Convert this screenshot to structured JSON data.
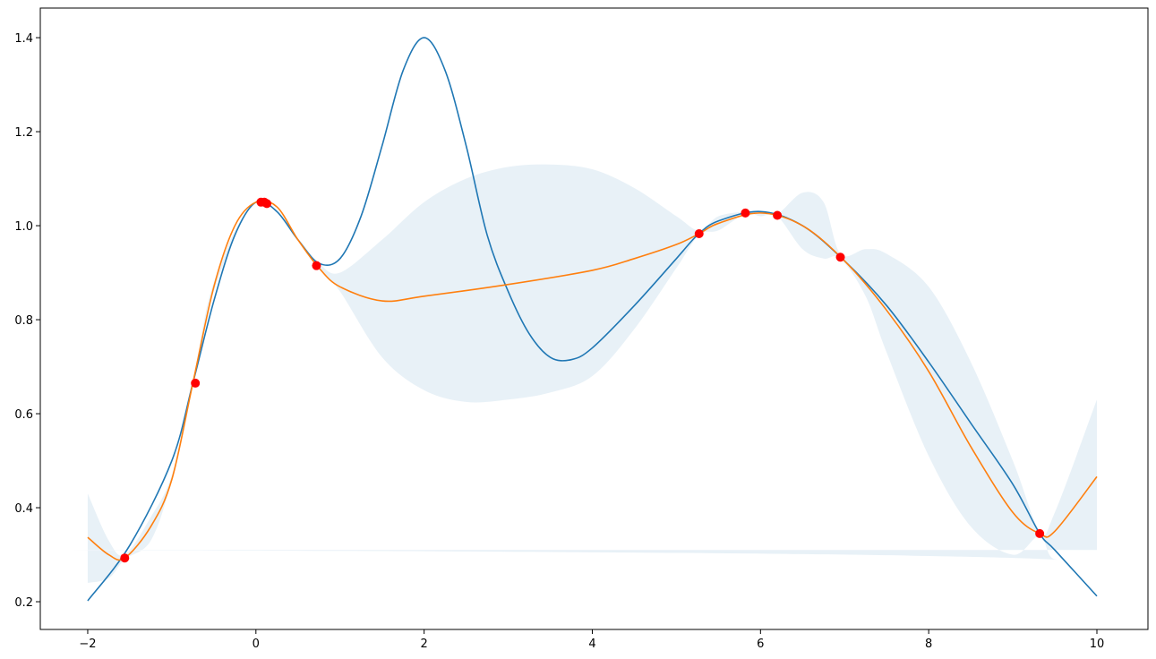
{
  "chart_data": {
    "type": "line",
    "xlim": [
      -2.564,
      10.607
    ],
    "ylim": [
      0.141,
      1.463
    ],
    "xticks": [
      {
        "value": -2,
        "label": "−2"
      },
      0,
      2,
      4,
      6,
      8,
      10
    ],
    "yticks": [
      0.2,
      0.4,
      0.6,
      0.8,
      {
        "value": 1,
        "label": "1.0"
      },
      1.2,
      1.4
    ],
    "band": {
      "color": "#1f77b4",
      "x": [
        -2,
        -1.75,
        -1.56,
        -1.25,
        -1,
        -0.75,
        -0.5,
        0,
        0.5,
        0.75,
        1,
        1.5,
        2,
        2.5,
        3,
        3.5,
        4,
        4.5,
        5,
        5.27,
        5.5,
        5.82,
        6,
        6.2,
        6.5,
        6.75,
        6.95,
        7.25,
        7.5,
        8,
        8.5,
        9,
        9.32,
        9.5,
        10
      ],
      "lower": [
        0.24,
        0.25,
        0.29,
        0.33,
        0.46,
        0.665,
        0.86,
        1.05,
        0.97,
        0.91,
        0.86,
        0.72,
        0.65,
        0.625,
        0.63,
        0.645,
        0.68,
        0.78,
        0.91,
        0.98,
        0.99,
        1.025,
        1.02,
        1.02,
        0.95,
        0.93,
        0.93,
        0.85,
        0.73,
        0.51,
        0.36,
        0.3,
        0.34,
        0.29,
        0.31
      ],
      "upper": [
        0.43,
        0.33,
        0.3,
        0.38,
        0.47,
        0.665,
        0.88,
        1.05,
        0.97,
        0.92,
        0.9,
        0.97,
        1.05,
        1.1,
        1.125,
        1.13,
        1.12,
        1.08,
        1.02,
        0.99,
        1.02,
        1.03,
        1.03,
        1.025,
        1.07,
        1.05,
        0.94,
        0.95,
        0.94,
        0.87,
        0.71,
        0.5,
        0.35,
        0.39,
        0.63
      ]
    },
    "series": [
      {
        "color": "#1f77b4",
        "x": [
          -2,
          -1.5,
          -1,
          -0.75,
          -0.5,
          -0.25,
          0,
          0.25,
          0.5,
          0.75,
          1,
          1.25,
          1.5,
          1.75,
          2,
          2.25,
          2.5,
          2.75,
          3,
          3.25,
          3.5,
          3.75,
          4,
          4.5,
          5,
          5.25,
          5.5,
          6,
          6.5,
          7,
          7.5,
          8,
          8.5,
          9,
          9.32,
          9.5,
          10
        ],
        "values": [
          0.202,
          0.32,
          0.5,
          0.665,
          0.84,
          0.98,
          1.05,
          1.03,
          0.97,
          0.92,
          0.93,
          1.02,
          1.17,
          1.33,
          1.4,
          1.33,
          1.17,
          0.98,
          0.86,
          0.77,
          0.72,
          0.715,
          0.74,
          0.83,
          0.93,
          0.98,
          1.01,
          1.03,
          1.0,
          0.925,
          0.83,
          0.71,
          0.58,
          0.45,
          0.345,
          0.31,
          0.212
        ]
      },
      {
        "color": "#ff7f0e",
        "x": [
          -2,
          -1.75,
          -1.56,
          -1.25,
          -1,
          -0.75,
          -0.5,
          -0.25,
          0,
          0.25,
          0.5,
          0.75,
          1,
          1.5,
          2,
          3,
          4,
          4.5,
          5,
          5.27,
          5.5,
          6,
          6.5,
          7,
          7.5,
          8,
          8.5,
          9,
          9.32,
          9.5,
          10
        ],
        "values": [
          0.337,
          0.3,
          0.293,
          0.36,
          0.46,
          0.665,
          0.87,
          1.0,
          1.05,
          1.04,
          0.97,
          0.91,
          0.87,
          0.84,
          0.85,
          0.875,
          0.905,
          0.93,
          0.96,
          0.983,
          1.005,
          1.027,
          1.0,
          0.925,
          0.82,
          0.69,
          0.53,
          0.39,
          0.345,
          0.35,
          0.466
        ]
      }
    ],
    "points": {
      "color": "#ff0000",
      "x": [
        -1.56,
        -0.72,
        0.06,
        0.1,
        0.13,
        0.72,
        5.27,
        5.82,
        6.2,
        6.95,
        9.32
      ],
      "values": [
        0.293,
        0.665,
        1.05,
        1.05,
        1.047,
        0.915,
        0.983,
        1.027,
        1.022,
        0.933,
        0.345
      ]
    }
  }
}
